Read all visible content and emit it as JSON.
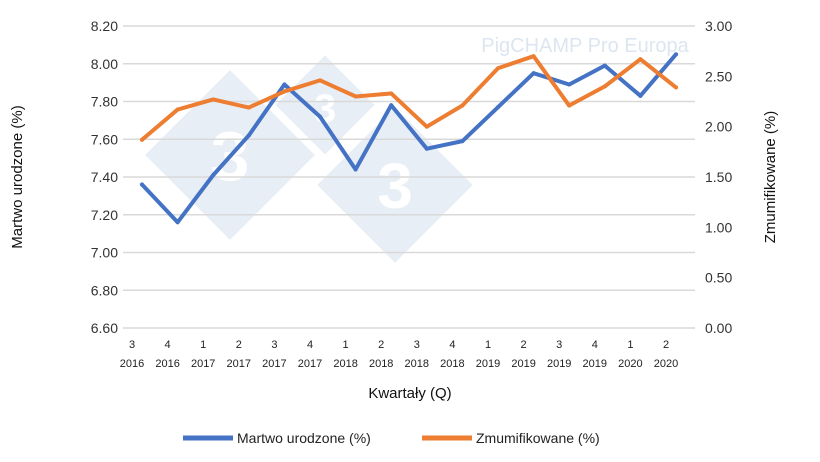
{
  "chart_data": {
    "type": "line",
    "watermark": "PigCHAMP Pro Europa",
    "xlabel": "Kwartały (Q)",
    "ylabel_left": "Martwo urodzone (%)",
    "ylabel_right": "Zmumifikowane (%)",
    "categories": [
      {
        "q": "3",
        "y": "2016"
      },
      {
        "q": "4",
        "y": "2016"
      },
      {
        "q": "1",
        "y": "2017"
      },
      {
        "q": "2",
        "y": "2017"
      },
      {
        "q": "3",
        "y": "2017"
      },
      {
        "q": "4",
        "y": "2017"
      },
      {
        "q": "1",
        "y": "2018"
      },
      {
        "q": "2",
        "y": "2018"
      },
      {
        "q": "3",
        "y": "2018"
      },
      {
        "q": "4",
        "y": "2018"
      },
      {
        "q": "1",
        "y": "2019"
      },
      {
        "q": "2",
        "y": "2019"
      },
      {
        "q": "3",
        "y": "2019"
      },
      {
        "q": "4",
        "y": "2019"
      },
      {
        "q": "1",
        "y": "2020"
      },
      {
        "q": "2",
        "y": "2020"
      }
    ],
    "ylim_left": [
      6.6,
      8.2
    ],
    "yticks_left": [
      "6.60",
      "6.80",
      "7.00",
      "7.20",
      "7.40",
      "7.60",
      "7.80",
      "8.00",
      "8.20"
    ],
    "ylim_right": [
      0,
      3
    ],
    "yticks_right": [
      "0.00",
      "0.50",
      "1.00",
      "1.50",
      "2.00",
      "2.50",
      "3.00"
    ],
    "grid": true,
    "legend_position": "bottom",
    "series": [
      {
        "name": "Martwo urodzone (%)",
        "axis": "left",
        "color": "#4472c4",
        "values": [
          7.36,
          7.16,
          7.41,
          7.62,
          7.89,
          7.72,
          7.44,
          7.78,
          7.55,
          7.59,
          7.77,
          7.95,
          7.89,
          7.99,
          7.83,
          8.05
        ]
      },
      {
        "name": "Zmumifikowane (%)",
        "axis": "right",
        "color": "#ed7d31",
        "values": [
          1.87,
          2.17,
          2.27,
          2.19,
          2.35,
          2.46,
          2.3,
          2.33,
          2.0,
          2.21,
          2.58,
          2.7,
          2.21,
          2.4,
          2.67,
          2.39
        ]
      }
    ]
  }
}
